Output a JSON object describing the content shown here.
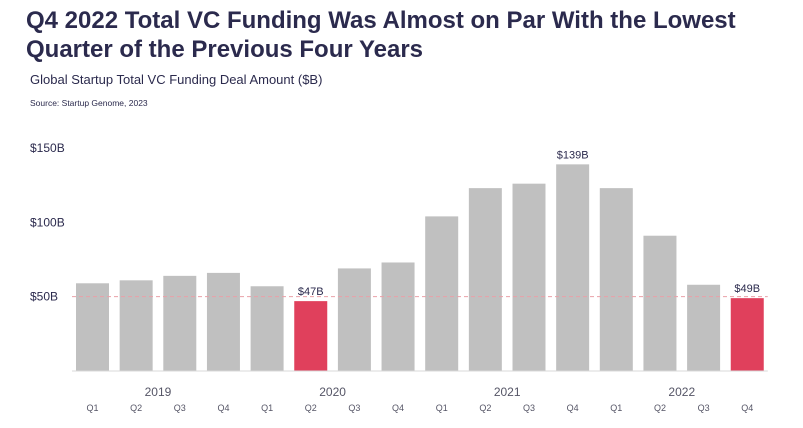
{
  "header": {
    "title": "Q4 2022 Total VC Funding Was Almost on Par With the Lowest Quarter of the Previous Four Years",
    "subtitle": "Global Startup Total VC Funding Deal Amount ($B)",
    "source": "Source: Startup Genome, 2023"
  },
  "colors": {
    "title": "#2b2a4d",
    "bar": "#c0c0c0",
    "highlight": "#e0405c",
    "refline": "#e9a0a8",
    "text": "#2b2a4d",
    "axis": "#555566"
  },
  "chart_data": {
    "type": "bar",
    "title": "Global Startup Total VC Funding Deal Amount ($B)",
    "xlabel": "",
    "ylabel": "",
    "ylim": [
      0,
      150
    ],
    "yticks": [
      {
        "value": 50,
        "label": "$50B"
      },
      {
        "value": 100,
        "label": "$100B"
      },
      {
        "value": 150,
        "label": "$150B"
      }
    ],
    "reference_line": 50,
    "grid": false,
    "years": [
      {
        "label": "2019",
        "first": 0,
        "last": 3
      },
      {
        "label": "2020",
        "first": 4,
        "last": 7
      },
      {
        "label": "2021",
        "first": 8,
        "last": 11
      },
      {
        "label": "2022",
        "first": 12,
        "last": 15
      }
    ],
    "categories": [
      "Q1",
      "Q2",
      "Q3",
      "Q4",
      "Q1",
      "Q2",
      "Q3",
      "Q4",
      "Q1",
      "Q2",
      "Q3",
      "Q4",
      "Q1",
      "Q2",
      "Q3",
      "Q4"
    ],
    "values": [
      59,
      61,
      64,
      66,
      57,
      47,
      69,
      73,
      104,
      123,
      126,
      139,
      123,
      91,
      58,
      49
    ],
    "highlighted": [
      5,
      15
    ],
    "data_labels": [
      {
        "index": 5,
        "text": "$47B"
      },
      {
        "index": 11,
        "text": "$139B"
      },
      {
        "index": 15,
        "text": "$49B"
      }
    ]
  }
}
